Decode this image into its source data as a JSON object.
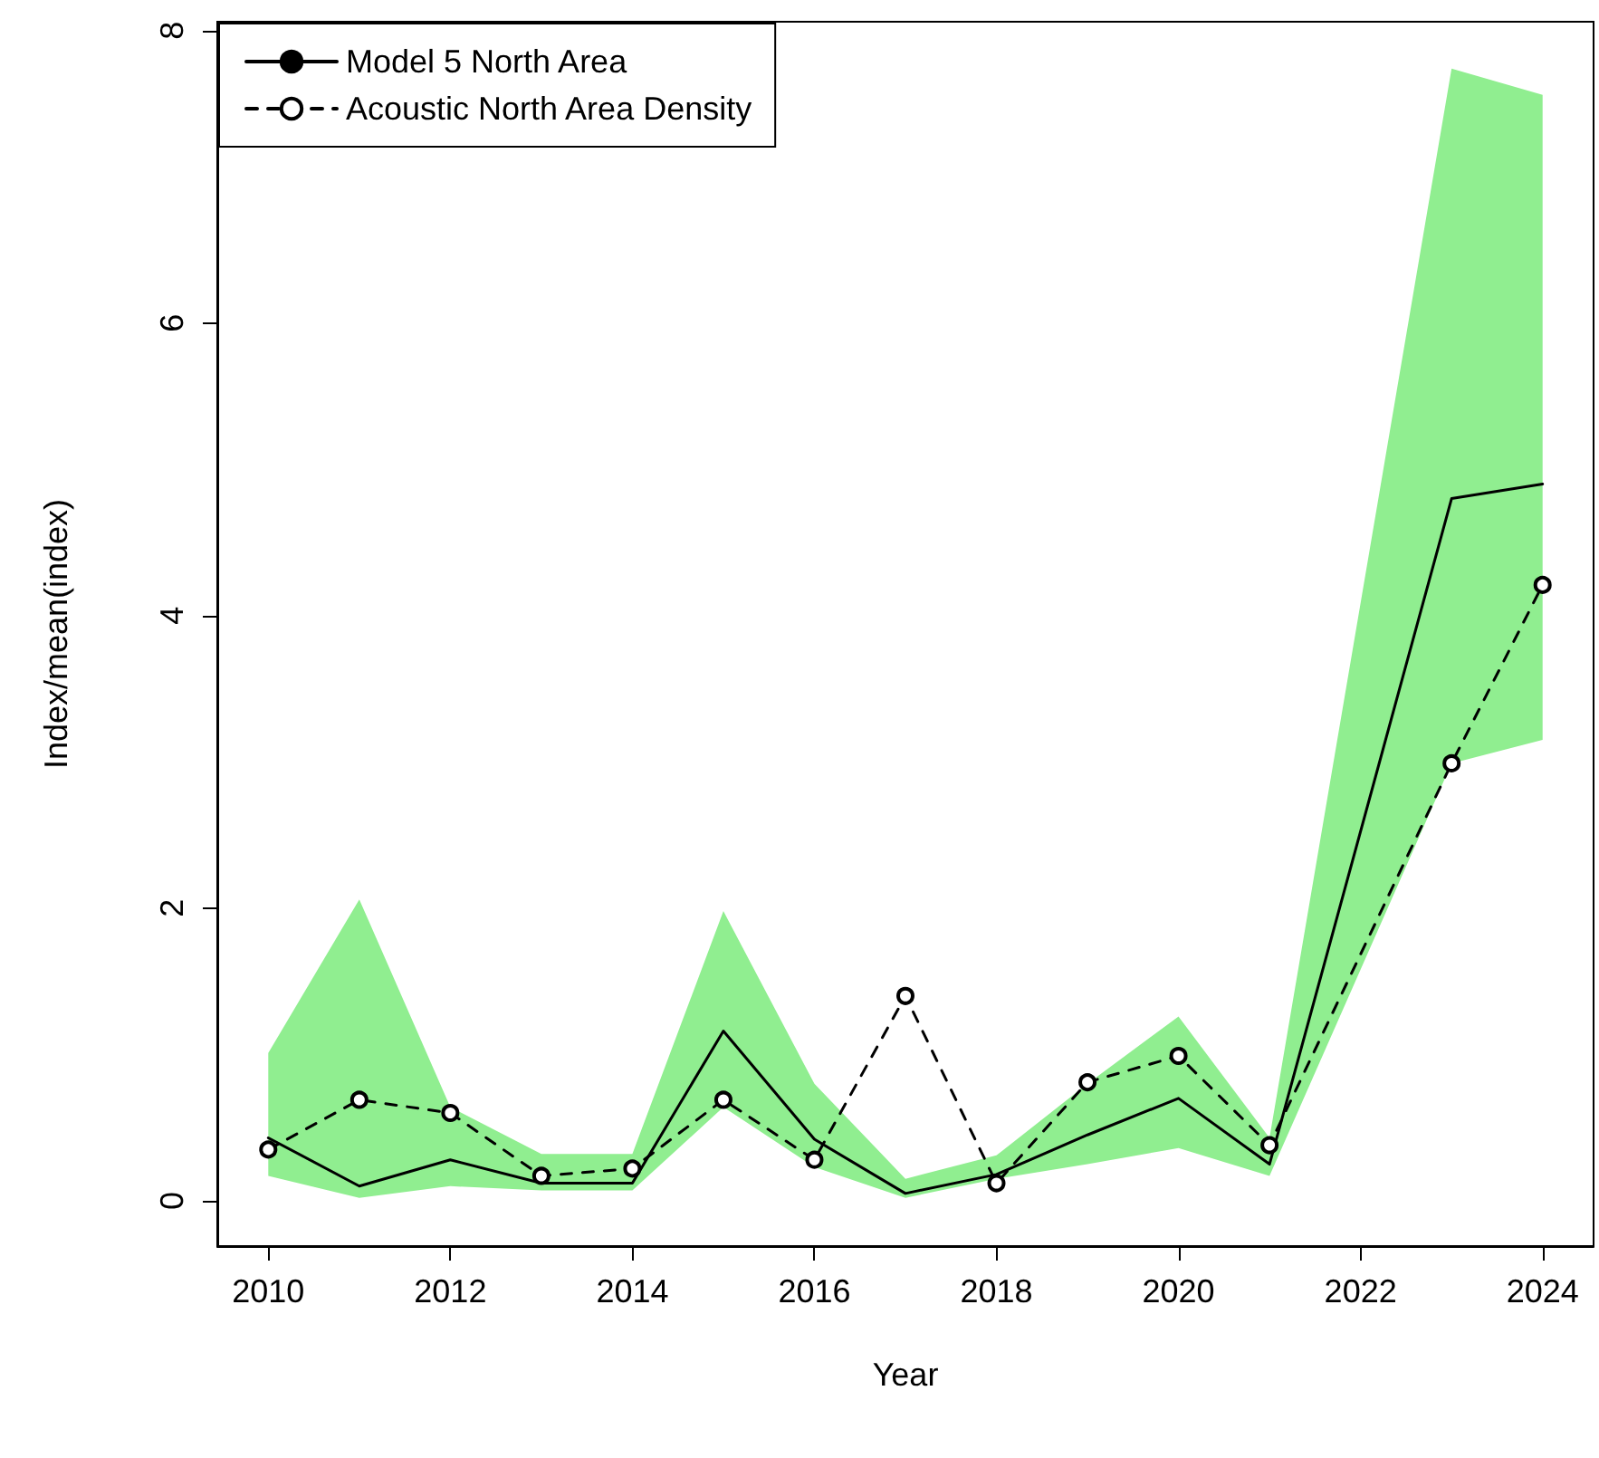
{
  "chart_data": {
    "type": "line",
    "xlabel": "Year",
    "ylabel": "Index/mean(index)",
    "x": [
      2010,
      2011,
      2012,
      2013,
      2014,
      2015,
      2016,
      2017,
      2018,
      2019,
      2020,
      2021,
      2023,
      2024
    ],
    "series": [
      {
        "name": "Model 5 North Area",
        "color": "#000000",
        "line_style": "solid",
        "marker": "none",
        "values": [
          0.43,
          0.1,
          0.28,
          0.12,
          0.12,
          1.16,
          0.42,
          0.05,
          0.18,
          0.45,
          0.7,
          0.25,
          4.8,
          4.9
        ],
        "lower": [
          0.17,
          0.02,
          0.1,
          0.07,
          0.07,
          0.64,
          0.23,
          0.02,
          0.15,
          0.25,
          0.36,
          0.17,
          2.99,
          3.15
        ],
        "upper": [
          1.01,
          2.06,
          0.64,
          0.32,
          0.32,
          1.98,
          0.8,
          0.15,
          0.31,
          0.8,
          1.26,
          0.43,
          7.74,
          7.56
        ]
      },
      {
        "name": "Acoustic North Area Density",
        "color": "#000000",
        "line_style": "dashed",
        "marker": "circle",
        "values": [
          0.35,
          0.69,
          0.6,
          0.17,
          0.22,
          0.69,
          0.28,
          1.4,
          0.12,
          0.81,
          0.99,
          0.38,
          2.99,
          4.21
        ]
      }
    ],
    "xlim": [
      2009.44,
      2024.56
    ],
    "xticks": [
      2010,
      2012,
      2014,
      2016,
      2018,
      2020,
      2022,
      2024
    ],
    "ylim": [
      -0.31,
      8.06
    ],
    "yticks": [
      0,
      2,
      4,
      6,
      8
    ],
    "grid": false,
    "legend": "top left"
  }
}
